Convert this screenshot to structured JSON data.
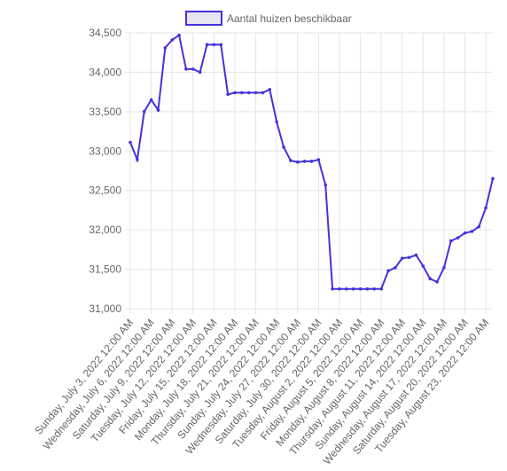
{
  "chart_data": {
    "type": "line",
    "title": "",
    "xlabel": "",
    "ylabel": "",
    "legend_position": "top-center",
    "grid": true,
    "ylim": [
      31000,
      34500
    ],
    "y_ticks": [
      "34,500",
      "34,000",
      "33,500",
      "33,000",
      "32,500",
      "32,000",
      "31,500",
      "31,000"
    ],
    "x_tick_labels": [
      "Sunday, July 3, 2022 12:00 AM",
      "Wednesday, July 6, 2022 12:00 AM",
      "Saturday, July 9, 2022 12:00 AM",
      "Tuesday, July 12, 2022 12:00 AM",
      "Friday, July 15, 2022 12:00 AM",
      "Monday, July 18, 2022 12:00 AM",
      "Thursday, July 21, 2022 12:00 AM",
      "Sunday, July 24, 2022 12:00 AM",
      "Wednesday, July 27, 2022 12:00 AM",
      "Saturday, July 30, 2022 12:00 AM",
      "Tuesday, August 2, 2022 12:00 AM",
      "Friday, August 5, 2022 12:00 AM",
      "Monday, August 8, 2022 12:00 AM",
      "Thursday, August 11, 2022 12:00 AM",
      "Sunday, August 14, 2022 12:00 AM",
      "Wednesday, August 17, 2022 12:00 AM",
      "Saturday, August 20, 2022 12:00 AM",
      "Tuesday, August 23, 2022 12:00 AM"
    ],
    "series": [
      {
        "name": "Aantal huizen beschikbaar",
        "color": "#4433dd",
        "fill": "#e6e6f0",
        "x": [
          "2022-07-03",
          "2022-07-04",
          "2022-07-05",
          "2022-07-06",
          "2022-07-07",
          "2022-07-08",
          "2022-07-09",
          "2022-07-10",
          "2022-07-11",
          "2022-07-12",
          "2022-07-13",
          "2022-07-14",
          "2022-07-15",
          "2022-07-16",
          "2022-07-17",
          "2022-07-18",
          "2022-07-19",
          "2022-07-20",
          "2022-07-21",
          "2022-07-22",
          "2022-07-23",
          "2022-07-24",
          "2022-07-25",
          "2022-07-26",
          "2022-07-27",
          "2022-07-28",
          "2022-07-29",
          "2022-07-30",
          "2022-07-31",
          "2022-08-01",
          "2022-08-02",
          "2022-08-03",
          "2022-08-04",
          "2022-08-05",
          "2022-08-06",
          "2022-08-07",
          "2022-08-08",
          "2022-08-09",
          "2022-08-10",
          "2022-08-11",
          "2022-08-12",
          "2022-08-13",
          "2022-08-14",
          "2022-08-15",
          "2022-08-16",
          "2022-08-17",
          "2022-08-18",
          "2022-08-19",
          "2022-08-20",
          "2022-08-21",
          "2022-08-22",
          "2022-08-23",
          "2022-08-24"
        ],
        "values": [
          33110,
          32890,
          33500,
          33650,
          33520,
          34310,
          34410,
          34470,
          34040,
          34040,
          34000,
          34350,
          34350,
          34350,
          33720,
          33740,
          33740,
          33740,
          33740,
          33740,
          33780,
          33370,
          33050,
          32880,
          32860,
          32870,
          32870,
          32890,
          32570,
          31250,
          31250,
          31250,
          31250,
          31250,
          31250,
          31250,
          31250,
          31480,
          31520,
          31640,
          31650,
          31680,
          31540,
          31380,
          31340,
          31520,
          31860,
          31900,
          31960,
          31980,
          32040,
          32280,
          32650
        ]
      }
    ]
  }
}
